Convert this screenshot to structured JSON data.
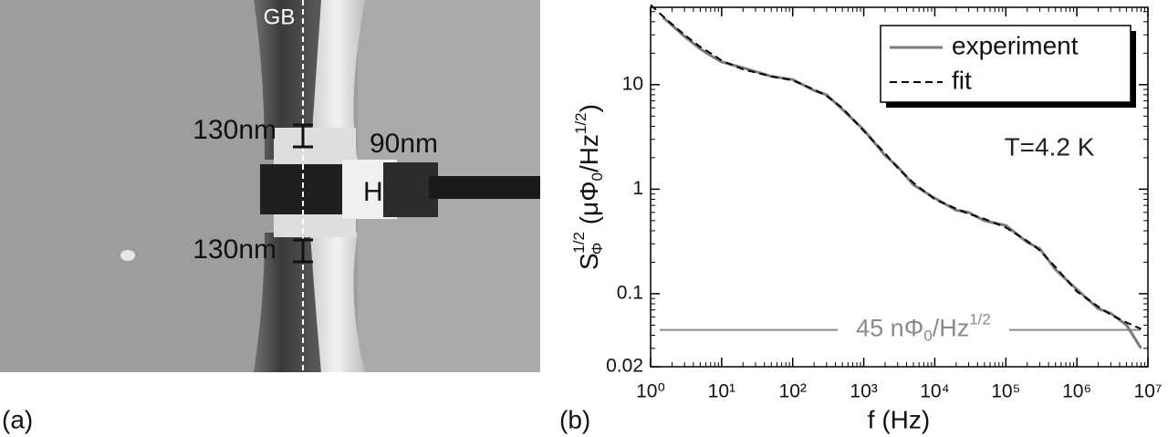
{
  "image_panel": {
    "label": "(a)",
    "annotations": [
      "GB",
      "130nm",
      "90nm",
      "H",
      "130nm"
    ]
  },
  "chart_data": {
    "type": "line",
    "panel_label": "(b)",
    "xlabel": "f (Hz)",
    "ylabel_parts": [
      "S",
      "Φ",
      "1/2",
      " (μΦ",
      "0",
      "/Hz",
      "1/2",
      ")"
    ],
    "annotation": "T=4.2 K",
    "noise_floor": 0.045,
    "noise_floor_label_parts": [
      "45 nΦ",
      "0",
      "/Hz",
      "1/2"
    ],
    "noise_floor_color": "#8a8a8a",
    "x_scale": "log",
    "y_scale": "log",
    "xlim": [
      1,
      10000000
    ],
    "ylim": [
      0.02,
      55
    ],
    "xticks": [
      {
        "value": 1,
        "label": "10⁰"
      },
      {
        "value": 10,
        "label": "10¹"
      },
      {
        "value": 100,
        "label": "10²"
      },
      {
        "value": 1000,
        "label": "10³"
      },
      {
        "value": 10000,
        "label": "10⁴"
      },
      {
        "value": 100000,
        "label": "10⁵"
      },
      {
        "value": 1000000,
        "label": "10⁶"
      },
      {
        "value": 10000000,
        "label": "10⁷"
      }
    ],
    "yticks": [
      0.02,
      0.1,
      1,
      10
    ],
    "legend": "upper right",
    "x": [
      1,
      1.5,
      2,
      3,
      5,
      7,
      10,
      20,
      50,
      100,
      200,
      300,
      500,
      1000,
      2000,
      3000,
      5000,
      10000,
      20000,
      30000,
      50000,
      100000,
      200000,
      300000,
      500000,
      1000000,
      2000000,
      3000000,
      5000000,
      8000000
    ],
    "series": [
      {
        "name": "experiment",
        "color": "#7a7a7a",
        "dash": false,
        "values": [
          null,
          44,
          37,
          29,
          22,
          19,
          16.5,
          14.5,
          12,
          11.2,
          8.8,
          8,
          5.8,
          3.7,
          2.1,
          1.65,
          1.1,
          0.82,
          0.63,
          0.6,
          0.5,
          0.45,
          0.31,
          0.27,
          0.17,
          0.11,
          0.072,
          0.065,
          0.05,
          0.03
        ]
      },
      {
        "name": "fit",
        "color": "#000000",
        "dash": true,
        "values": [
          58,
          45,
          38,
          30,
          23,
          20,
          17,
          14,
          12,
          11,
          9,
          7.8,
          6,
          3.6,
          2.2,
          1.6,
          1.15,
          0.8,
          0.65,
          0.58,
          0.52,
          0.43,
          0.32,
          0.26,
          0.18,
          0.105,
          0.075,
          0.063,
          0.053,
          0.046
        ]
      }
    ]
  }
}
